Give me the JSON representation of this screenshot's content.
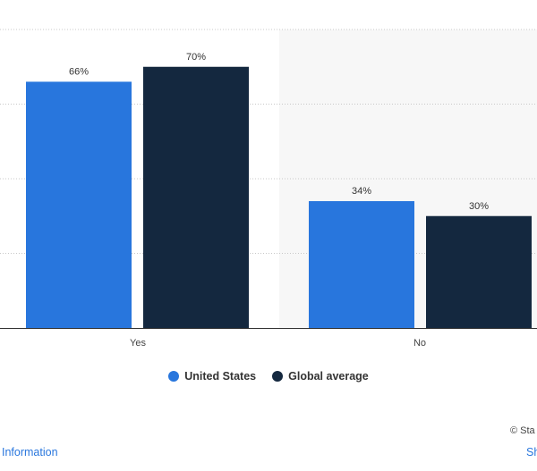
{
  "chart_data": {
    "type": "bar",
    "categories": [
      "Yes",
      "No"
    ],
    "series": [
      {
        "name": "United States",
        "values": [
          66,
          34
        ],
        "color": "#2876dd"
      },
      {
        "name": "Global average",
        "values": [
          70,
          30
        ],
        "color": "#14283f"
      }
    ],
    "value_suffix": "%",
    "ylim": [
      0,
      80
    ],
    "grid": true,
    "legend_position": "bottom"
  },
  "legend": {
    "items": [
      {
        "label": "United States",
        "color": "#2876dd",
        "icon": "circle"
      },
      {
        "label": "Global average",
        "color": "#14283f",
        "icon": "circle"
      }
    ]
  },
  "footer": {
    "credit": "© Sta",
    "left_link": "Information",
    "right_link": "Sh"
  }
}
